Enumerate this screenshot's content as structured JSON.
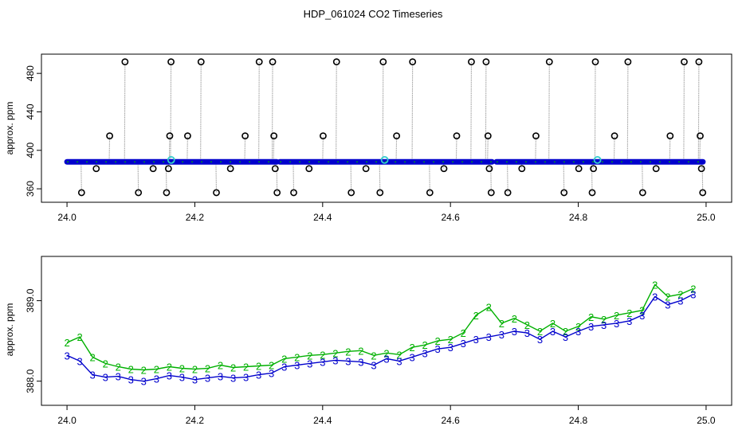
{
  "title": "HDP_061024  CO2 Timeseries",
  "colors": {
    "blue": "#0000cc",
    "green": "#00b000",
    "cyan": "#33cccc",
    "gray": "#9a9a9a",
    "black": "#000000"
  },
  "chart_data": [
    {
      "type": "scatter",
      "title": "HDP_061024  CO2 Timeseries",
      "ylabel": "approx. ppm",
      "xlabel": "",
      "xlim": [
        23.96,
        25.04
      ],
      "ylim": [
        346,
        500
      ],
      "x_ticks": [
        24.0,
        24.2,
        24.4,
        24.6,
        24.8,
        25.0
      ],
      "x_tick_labels": [
        "24.0",
        "24.2",
        "24.4",
        "24.6",
        "24.8",
        "25.0"
      ],
      "y_ticks": [
        360,
        400,
        440,
        480
      ],
      "y_tick_labels": [
        "360",
        "400",
        "440",
        "480"
      ],
      "grid": false,
      "baseline": {
        "name": "",
        "color": "blue",
        "segments": [
          {
            "x_start": 24.0,
            "x_end": 24.328,
            "y": 388
          },
          {
            "x_start": 24.333,
            "x_end": 24.665,
            "y": 388
          },
          {
            "x_start": 24.672,
            "x_end": 24.995,
            "y": 388
          }
        ]
      },
      "cyan_markers": [
        {
          "x": 24.163,
          "y": 390
        },
        {
          "x": 24.497,
          "y": 390
        },
        {
          "x": 24.83,
          "y": 390
        }
      ],
      "spikes": [
        {
          "x": 24.022,
          "y": 356
        },
        {
          "x": 24.066,
          "y": 415
        },
        {
          "x": 24.045,
          "y": 381
        },
        {
          "x": 24.09,
          "y": 492
        },
        {
          "x": 24.111,
          "y": 356
        },
        {
          "x": 24.134,
          "y": 381
        },
        {
          "x": 24.155,
          "y": 356
        },
        {
          "x": 24.158,
          "y": 381
        },
        {
          "x": 24.16,
          "y": 415
        },
        {
          "x": 24.162,
          "y": 492
        },
        {
          "x": 24.188,
          "y": 415
        },
        {
          "x": 24.209,
          "y": 492
        },
        {
          "x": 24.233,
          "y": 356
        },
        {
          "x": 24.255,
          "y": 381
        },
        {
          "x": 24.278,
          "y": 415
        },
        {
          "x": 24.3,
          "y": 492
        },
        {
          "x": 24.321,
          "y": 492
        },
        {
          "x": 24.323,
          "y": 415
        },
        {
          "x": 24.325,
          "y": 381
        },
        {
          "x": 24.328,
          "y": 356
        },
        {
          "x": 24.354,
          "y": 356
        },
        {
          "x": 24.378,
          "y": 381
        },
        {
          "x": 24.4,
          "y": 415
        },
        {
          "x": 24.421,
          "y": 492
        },
        {
          "x": 24.444,
          "y": 356
        },
        {
          "x": 24.467,
          "y": 381
        },
        {
          "x": 24.489,
          "y": 356
        },
        {
          "x": 24.494,
          "y": 492
        },
        {
          "x": 24.515,
          "y": 415
        },
        {
          "x": 24.54,
          "y": 492
        },
        {
          "x": 24.567,
          "y": 356
        },
        {
          "x": 24.589,
          "y": 381
        },
        {
          "x": 24.609,
          "y": 415
        },
        {
          "x": 24.632,
          "y": 492
        },
        {
          "x": 24.655,
          "y": 492
        },
        {
          "x": 24.658,
          "y": 415
        },
        {
          "x": 24.66,
          "y": 381
        },
        {
          "x": 24.663,
          "y": 356
        },
        {
          "x": 24.689,
          "y": 356
        },
        {
          "x": 24.711,
          "y": 381
        },
        {
          "x": 24.733,
          "y": 415
        },
        {
          "x": 24.754,
          "y": 492
        },
        {
          "x": 24.777,
          "y": 356
        },
        {
          "x": 24.8,
          "y": 381
        },
        {
          "x": 24.821,
          "y": 356
        },
        {
          "x": 24.823,
          "y": 381
        },
        {
          "x": 24.826,
          "y": 492
        },
        {
          "x": 24.856,
          "y": 415
        },
        {
          "x": 24.877,
          "y": 492
        },
        {
          "x": 24.9,
          "y": 356
        },
        {
          "x": 24.921,
          "y": 381
        },
        {
          "x": 24.943,
          "y": 415
        },
        {
          "x": 24.965,
          "y": 492
        },
        {
          "x": 24.988,
          "y": 492
        },
        {
          "x": 24.99,
          "y": 415
        },
        {
          "x": 24.992,
          "y": 381
        },
        {
          "x": 24.994,
          "y": 356
        }
      ]
    },
    {
      "type": "line",
      "title": "",
      "ylabel": "approx. ppm",
      "xlabel": "",
      "xlim": [
        23.96,
        25.04
      ],
      "ylim": [
        387.7,
        389.55
      ],
      "x_ticks": [
        24.0,
        24.2,
        24.4,
        24.6,
        24.8,
        25.0
      ],
      "x_tick_labels": [
        "24.0",
        "24.2",
        "24.4",
        "24.6",
        "24.8",
        "25.0"
      ],
      "y_ticks": [
        388.0,
        389.0
      ],
      "y_tick_labels": [
        "388.0",
        "389.0"
      ],
      "grid": false,
      "markers": [
        "2",
        "3"
      ],
      "series": [
        {
          "marker": "2",
          "color": "green",
          "x": [
            24.0,
            24.02,
            24.04,
            24.06,
            24.08,
            24.1,
            24.12,
            24.14,
            24.16,
            24.18,
            24.2,
            24.22,
            24.24,
            24.26,
            24.28,
            24.3,
            24.32,
            24.34,
            24.36,
            24.38,
            24.4,
            24.42,
            24.44,
            24.46,
            24.48,
            24.5,
            24.52,
            24.54,
            24.56,
            24.58,
            24.6,
            24.62,
            24.64,
            24.66,
            24.68,
            24.7,
            24.72,
            24.74,
            24.76,
            24.78,
            24.8,
            24.82,
            24.84,
            24.86,
            24.88,
            24.9,
            24.92,
            24.94,
            24.96,
            24.98
          ],
          "values": [
            388.48,
            388.55,
            388.3,
            388.22,
            388.18,
            388.15,
            388.14,
            388.15,
            388.18,
            388.16,
            388.15,
            388.16,
            388.2,
            388.17,
            388.18,
            388.19,
            388.2,
            388.28,
            388.3,
            388.32,
            388.33,
            388.35,
            388.37,
            388.38,
            388.32,
            388.35,
            388.33,
            388.42,
            388.45,
            388.5,
            388.52,
            388.6,
            388.82,
            388.92,
            388.72,
            388.78,
            388.7,
            388.62,
            388.72,
            388.62,
            388.68,
            388.8,
            388.77,
            388.82,
            388.85,
            388.88,
            389.2,
            389.05,
            389.08,
            389.15
          ]
        },
        {
          "marker": "3",
          "color": "blue",
          "x": [
            24.0,
            24.02,
            24.04,
            24.06,
            24.08,
            24.1,
            24.12,
            24.14,
            24.16,
            24.18,
            24.2,
            24.22,
            24.24,
            24.26,
            24.28,
            24.3,
            24.32,
            24.34,
            24.36,
            24.38,
            24.4,
            24.42,
            24.44,
            24.46,
            24.48,
            24.5,
            24.52,
            24.54,
            24.56,
            24.58,
            24.6,
            24.62,
            24.64,
            24.66,
            24.68,
            24.7,
            24.72,
            24.74,
            24.76,
            24.78,
            24.8,
            24.82,
            24.84,
            24.86,
            24.88,
            24.9,
            24.92,
            24.94,
            24.96,
            24.98
          ],
          "values": [
            388.32,
            388.25,
            388.08,
            388.05,
            388.06,
            388.02,
            388.0,
            388.03,
            388.07,
            388.05,
            388.02,
            388.04,
            388.06,
            388.04,
            388.05,
            388.08,
            388.1,
            388.18,
            388.2,
            388.22,
            388.24,
            388.26,
            388.25,
            388.24,
            388.2,
            388.28,
            388.25,
            388.3,
            388.35,
            388.4,
            388.42,
            388.47,
            388.52,
            388.55,
            388.58,
            388.62,
            388.6,
            388.52,
            388.62,
            388.55,
            388.62,
            388.68,
            388.7,
            388.72,
            388.75,
            388.82,
            389.05,
            388.95,
            389.0,
            389.08
          ]
        }
      ]
    }
  ]
}
